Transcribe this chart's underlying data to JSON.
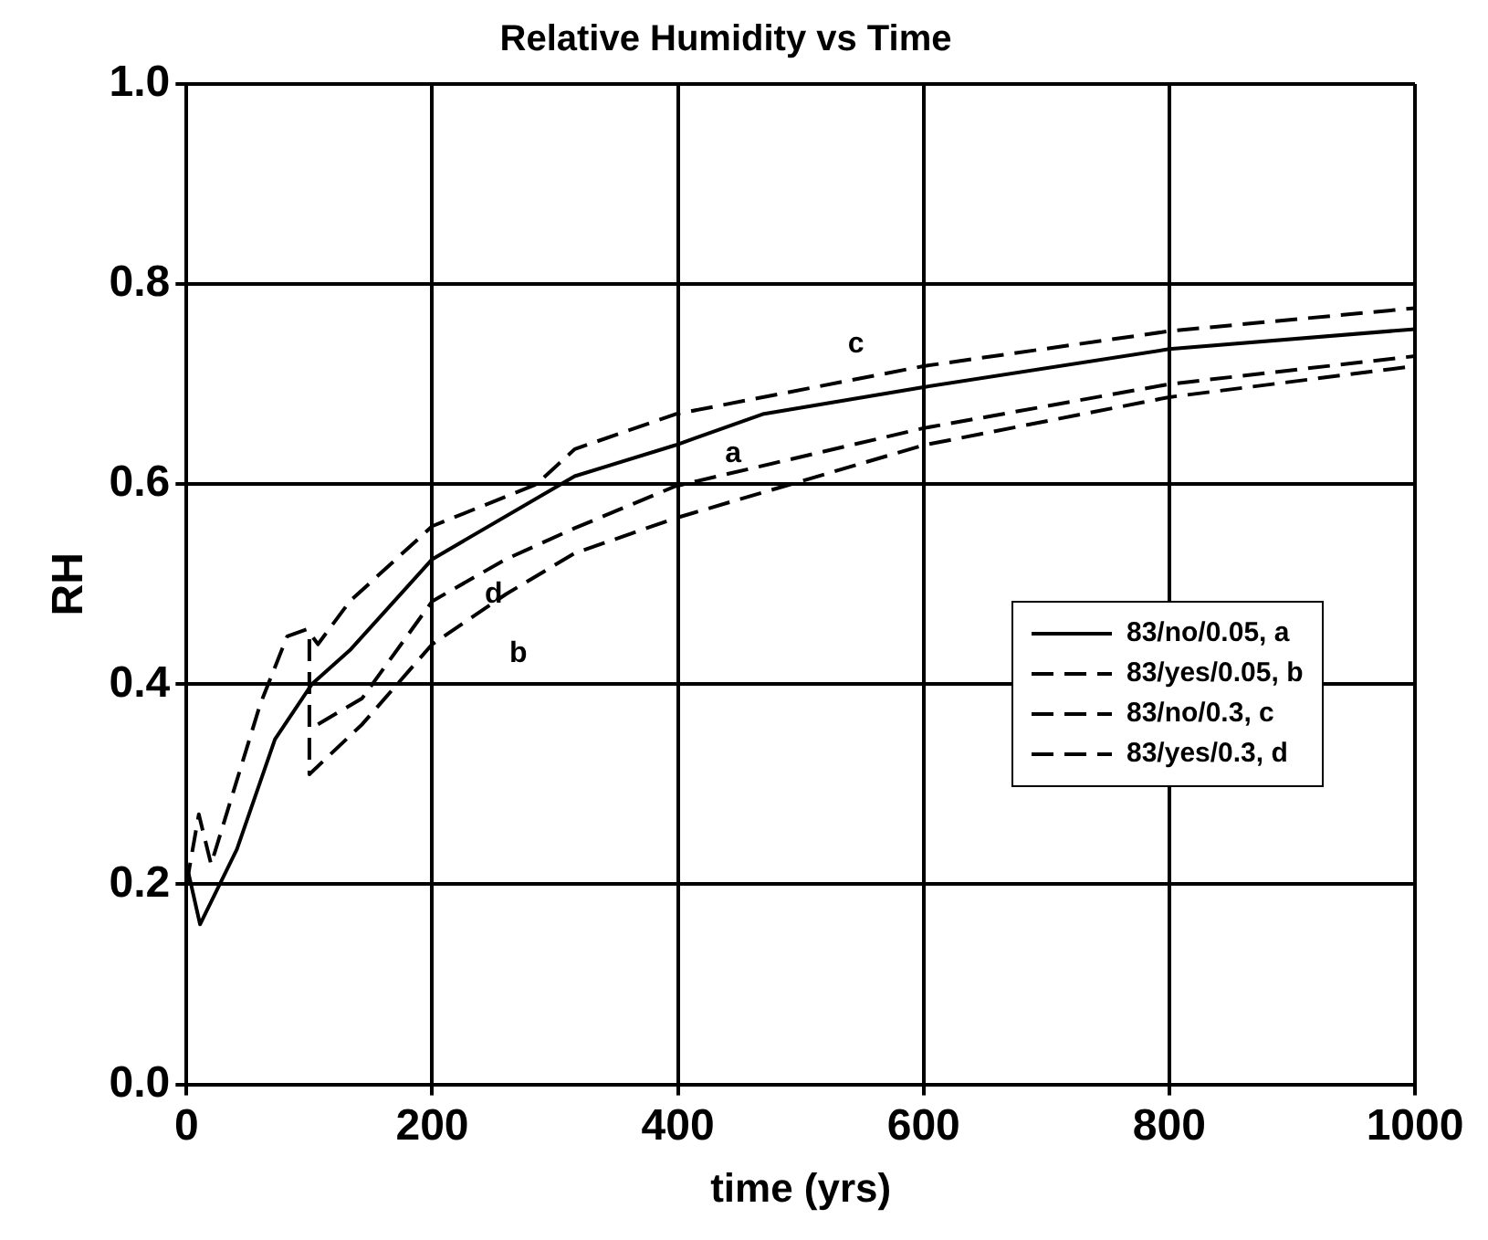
{
  "chart_data": {
    "type": "line",
    "title": "Relative Humidity vs Time",
    "xlabel": "time (yrs)",
    "ylabel": "RH",
    "xlim": [
      0,
      1000
    ],
    "xticks": [
      0,
      200,
      400,
      600,
      800,
      1000
    ],
    "ylim": [
      0,
      1
    ],
    "yticks": [
      {
        "value": 0,
        "label": "0.0"
      },
      {
        "value": 0.2,
        "label": "0.2"
      },
      {
        "value": 0.4,
        "label": "0.4"
      },
      {
        "value": 0.6,
        "label": "0.6"
      },
      {
        "value": 0.8,
        "label": "0.8"
      },
      {
        "value": 1,
        "label": "1.0"
      }
    ],
    "grid": true,
    "legend": "right",
    "marker": "none",
    "series": [
      {
        "name": "83/no/0.05, a",
        "color": "#000000",
        "line_style": "solid",
        "x": [
          0,
          11,
          41,
          72,
          102,
          133,
          200,
          316,
          398,
          469,
          600,
          800,
          1000
        ],
        "values": [
          0.22,
          0.16,
          0.235,
          0.345,
          0.4,
          0.434,
          0.525,
          0.608,
          0.639,
          0.67,
          0.697,
          0.735,
          0.755
        ]
      },
      {
        "name": "83/yes/0.05, b",
        "color": "#000000",
        "line_style": "dashed",
        "x": [
          100,
          100,
          143,
          200,
          260,
          316,
          398,
          600,
          800,
          1000
        ],
        "values": [
          0.445,
          0.31,
          0.36,
          0.44,
          0.49,
          0.531,
          0.566,
          0.639,
          0.687,
          0.718
        ]
      },
      {
        "name": "83/no/0.3, c",
        "color": "#000000",
        "line_style": "dashed",
        "x": [
          0,
          10,
          20,
          40,
          60,
          82,
          98,
          107,
          133,
          200,
          285,
          316,
          398,
          600,
          800,
          1000
        ],
        "values": [
          0.2,
          0.27,
          0.22,
          0.3,
          0.38,
          0.448,
          0.455,
          0.44,
          0.483,
          0.558,
          0.6,
          0.635,
          0.67,
          0.718,
          0.753,
          0.776
        ]
      },
      {
        "name": "83/yes/0.3, d",
        "color": "#000000",
        "line_style": "dashed",
        "x": [
          107,
          143,
          200,
          260,
          316,
          398,
          600,
          800,
          1000
        ],
        "values": [
          0.36,
          0.386,
          0.483,
          0.525,
          0.556,
          0.598,
          0.656,
          0.7,
          0.728
        ]
      }
    ],
    "annotations": [
      "c",
      "a",
      "d",
      "b"
    ]
  }
}
